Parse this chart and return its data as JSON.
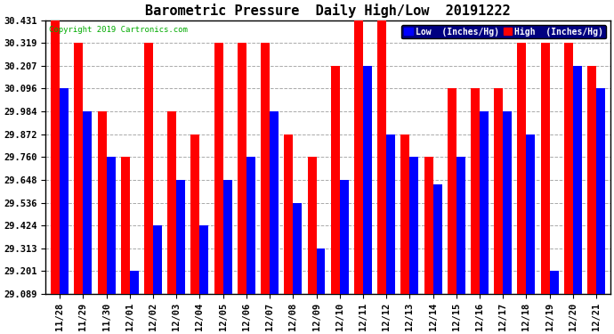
{
  "title": "Barometric Pressure  Daily High/Low  20191222",
  "copyright": "Copyright 2019 Cartronics.com",
  "legend_low": "Low  (Inches/Hg)",
  "legend_high": "High  (Inches/Hg)",
  "dates": [
    "11/28",
    "11/29",
    "11/30",
    "12/01",
    "12/02",
    "12/03",
    "12/04",
    "12/05",
    "12/06",
    "12/07",
    "12/08",
    "12/09",
    "12/10",
    "12/11",
    "12/12",
    "12/13",
    "12/14",
    "12/15",
    "12/16",
    "12/17",
    "12/18",
    "12/19",
    "12/20",
    "12/21"
  ],
  "high": [
    30.431,
    30.319,
    29.984,
    29.76,
    30.319,
    29.984,
    29.872,
    30.319,
    30.319,
    30.319,
    29.872,
    29.76,
    30.207,
    30.431,
    30.431,
    29.872,
    29.76,
    30.096,
    30.096,
    30.096,
    30.319,
    30.319,
    30.319,
    30.207
  ],
  "low": [
    30.096,
    29.984,
    29.76,
    29.201,
    29.424,
    29.648,
    29.424,
    29.648,
    29.76,
    29.984,
    29.536,
    29.313,
    29.648,
    30.207,
    29.872,
    29.76,
    29.624,
    29.76,
    29.984,
    29.984,
    29.872,
    29.201,
    30.207,
    30.096
  ],
  "ylim_min": 29.089,
  "ylim_max": 30.431,
  "yticks": [
    29.089,
    29.201,
    29.313,
    29.424,
    29.536,
    29.648,
    29.76,
    29.872,
    29.984,
    30.096,
    30.207,
    30.319,
    30.431
  ],
  "bar_color_low": "#0000FF",
  "bar_color_high": "#FF0000",
  "background_color": "#FFFFFF",
  "grid_color": "#AAAAAA",
  "title_fontsize": 11,
  "tick_fontsize": 7.5,
  "bar_width": 0.38,
  "figwidth": 6.9,
  "figheight": 3.75,
  "dpi": 100
}
